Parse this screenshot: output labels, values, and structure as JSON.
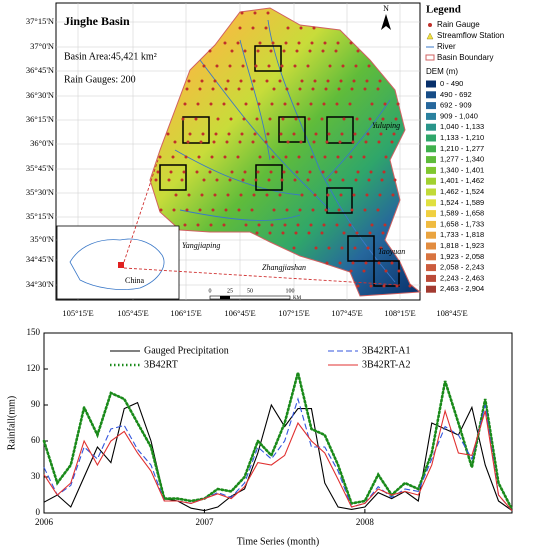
{
  "map": {
    "title": "Jinghe Basin",
    "area": "Basin Area:45,421 km²",
    "gauges": "Rain Gauges: 200",
    "north": "N",
    "lat_labels": [
      "37°15'N",
      "37°0'N",
      "36°45'N",
      "36°30'N",
      "36°15'N",
      "36°0'N",
      "35°45'N",
      "35°30'N",
      "35°15'N",
      "35°0'N",
      "34°45'N",
      "34°30'N"
    ],
    "lon_labels": [
      "105°15'E",
      "105°45'E",
      "106°15'E",
      "106°45'E",
      "107°15'E",
      "107°45'E",
      "108°15'E",
      "108°45'E"
    ],
    "places": {
      "yuluping": "Yuluping",
      "yangjiaping": "Yangjiaping",
      "zhangjiashan": "Zhangjiashan",
      "taoyuan": "Taoyuan",
      "china": "China"
    },
    "scale": {
      "ticks": [
        "0",
        "25",
        "50",
        "100"
      ],
      "unit": "KM"
    },
    "legend": {
      "title": "Legend",
      "rain_gauge": "Rain Gauge",
      "station": "Streamflow Station",
      "river": "River",
      "boundary": "Basin Boundary",
      "dem_title": "DEM (m)",
      "dem": [
        {
          "label": "0 - 490",
          "color": "#08306b"
        },
        {
          "label": "490 - 692",
          "color": "#174d87"
        },
        {
          "label": "692 - 909",
          "color": "#26679c"
        },
        {
          "label": "909 - 1,040",
          "color": "#2a819f"
        },
        {
          "label": "1,040 - 1,133",
          "color": "#2a958a"
        },
        {
          "label": "1,133 - 1,210",
          "color": "#2fa66a"
        },
        {
          "label": "1,210 - 1,277",
          "color": "#3fb04c"
        },
        {
          "label": "1,277 - 1,340",
          "color": "#5ebb3a"
        },
        {
          "label": "1,340 - 1,401",
          "color": "#80c72f"
        },
        {
          "label": "1,401 - 1,462",
          "color": "#a2d130"
        },
        {
          "label": "1,462 - 1,524",
          "color": "#c2da38"
        },
        {
          "label": "1,524 - 1,589",
          "color": "#e0e040"
        },
        {
          "label": "1,589 - 1,658",
          "color": "#f0d040"
        },
        {
          "label": "1,658 - 1,733",
          "color": "#f0bb40"
        },
        {
          "label": "1,733 - 1,818",
          "color": "#eaa440"
        },
        {
          "label": "1,818 - 1,923",
          "color": "#e28c40"
        },
        {
          "label": "1,923 - 2,058",
          "color": "#d87440"
        },
        {
          "label": "2,058 - 2,243",
          "color": "#cb5c3e"
        },
        {
          "label": "2,243 - 2,463",
          "color": "#ba4a38"
        },
        {
          "label": "2,463 - 2,904",
          "color": "#a23a30"
        }
      ]
    }
  },
  "chart_data": {
    "type": "line",
    "x_label": "Time Series (month)",
    "y_label": "Rainfall(mm)",
    "x": [
      2006,
      2006.083,
      2006.167,
      2006.25,
      2006.333,
      2006.417,
      2006.5,
      2006.583,
      2006.667,
      2006.75,
      2006.833,
      2006.917,
      2007,
      2007.083,
      2007.167,
      2007.25,
      2007.333,
      2007.417,
      2007.5,
      2007.583,
      2007.667,
      2007.75,
      2007.833,
      2007.917,
      2008,
      2008.083,
      2008.167,
      2008.25,
      2008.333,
      2008.417,
      2008.5,
      2008.583,
      2008.667,
      2008.75,
      2008.833,
      2008.917
    ],
    "xlim": [
      2006,
      2008.917
    ],
    "xticks": [
      2006,
      2007,
      2008
    ],
    "ylim": [
      0,
      150
    ],
    "yticks": [
      0,
      30,
      60,
      90,
      120,
      150
    ],
    "series": [
      {
        "name": "Gauged Precipitation",
        "color": "#000000",
        "style": "solid",
        "values": [
          9,
          15,
          5,
          30,
          55,
          42,
          87,
          92,
          60,
          12,
          10,
          4,
          2,
          5,
          14,
          20,
          50,
          90,
          72,
          87,
          87,
          25,
          5,
          3,
          5,
          17,
          12,
          18,
          10,
          75,
          70,
          65,
          88,
          40,
          10,
          2
        ]
      },
      {
        "name": "3B42RT",
        "color": "#1a8a1a",
        "style": "dotted",
        "values": [
          60,
          25,
          40,
          88,
          65,
          100,
          95,
          75,
          55,
          12,
          12,
          10,
          12,
          20,
          18,
          30,
          60,
          48,
          75,
          117,
          70,
          65,
          40,
          8,
          10,
          32,
          15,
          25,
          20,
          50,
          110,
          75,
          38,
          95,
          25,
          3
        ]
      },
      {
        "name": "3B42RT-A1",
        "color": "#3355dd",
        "style": "dashed",
        "values": [
          38,
          15,
          23,
          55,
          45,
          70,
          73,
          53,
          40,
          10,
          10,
          8,
          12,
          17,
          13,
          25,
          55,
          45,
          60,
          95,
          55,
          55,
          35,
          5,
          8,
          22,
          13,
          20,
          18,
          45,
          72,
          65,
          45,
          90,
          15,
          2
        ]
      },
      {
        "name": "3B42RT-A2",
        "color": "#e03030",
        "style": "solid",
        "values": [
          32,
          15,
          25,
          60,
          40,
          60,
          68,
          50,
          35,
          10,
          10,
          8,
          12,
          16,
          12,
          22,
          42,
          40,
          48,
          75,
          60,
          50,
          28,
          5,
          8,
          20,
          15,
          18,
          15,
          40,
          85,
          50,
          48,
          85,
          15,
          2
        ]
      }
    ]
  }
}
